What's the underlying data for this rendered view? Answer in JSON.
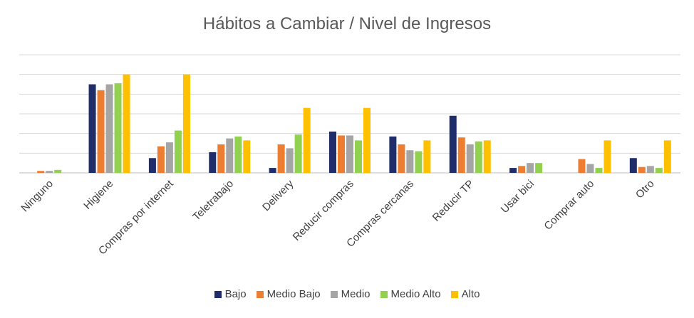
{
  "chart_data": {
    "type": "bar",
    "title": "Hábitos a Cambiar / Nivel de Ingresos",
    "xlabel": "",
    "ylabel": "",
    "ylim": [
      0,
      12
    ],
    "grid": true,
    "legend_position": "bottom",
    "categories": [
      "Ninguno",
      "Higiene",
      "Compras por internet",
      "Teletrabajo",
      "Delivery",
      "Reducir compras",
      "Compras cercanas",
      "Reducir TP",
      "Usar bici",
      "Comprar auto",
      "Otro"
    ],
    "series": [
      {
        "name": "Bajo",
        "color": "#1F2D6B",
        "values": [
          0,
          9,
          1.5,
          2.1,
          0.5,
          4.2,
          3.7,
          5.8,
          0.5,
          0,
          1.5
        ]
      },
      {
        "name": "Medio Bajo",
        "color": "#ED7D31",
        "values": [
          0.2,
          8.4,
          2.7,
          2.9,
          2.9,
          3.8,
          2.9,
          3.6,
          0.7,
          1.4,
          0.6
        ]
      },
      {
        "name": "Medio",
        "color": "#A5A5A5",
        "values": [
          0.2,
          9,
          3.1,
          3.5,
          2.5,
          3.8,
          2.3,
          2.9,
          1,
          0.9,
          0.7
        ]
      },
      {
        "name": "Medio Alto",
        "color": "#92D050",
        "values": [
          0.3,
          9.1,
          4.3,
          3.7,
          3.9,
          3.3,
          2.2,
          3.2,
          1,
          0.5,
          0.5
        ]
      },
      {
        "name": "Alto",
        "color": "#FFC000",
        "values": [
          0,
          10,
          10,
          3.3,
          6.6,
          6.6,
          3.3,
          3.3,
          0,
          3.3,
          3.3
        ]
      }
    ]
  }
}
